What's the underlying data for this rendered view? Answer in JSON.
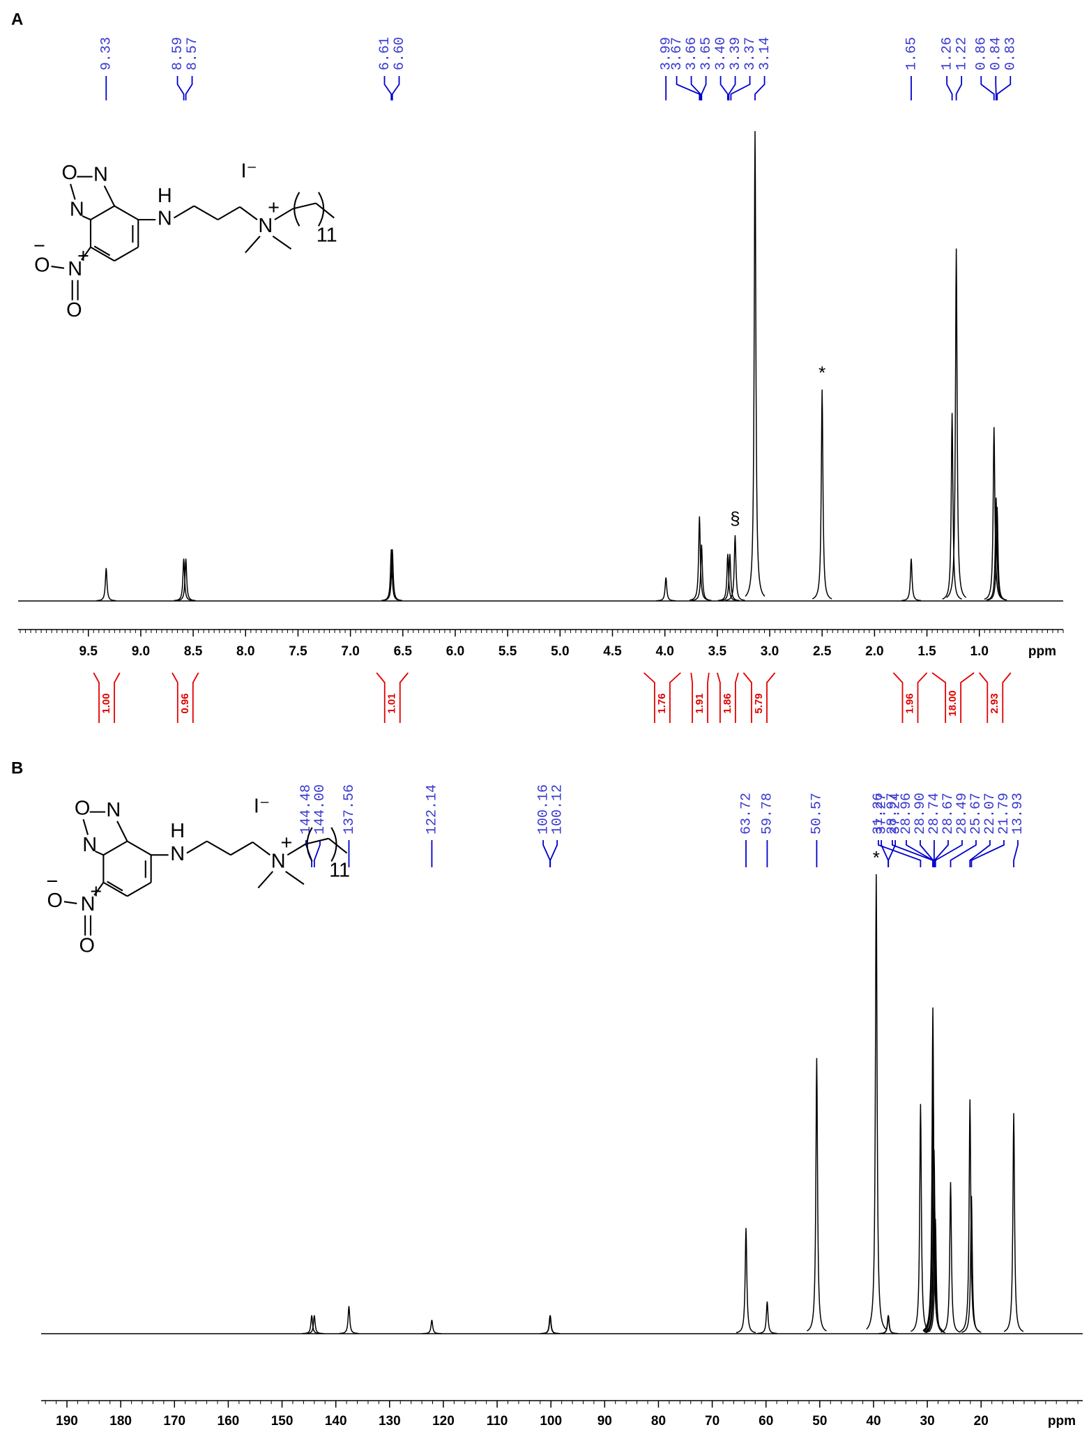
{
  "chart_data": [
    {
      "type": "nmr",
      "panel_label": "A",
      "x_label": "ppm",
      "xlim": [
        10.17,
        0.2
      ],
      "minor_tick_step": 0.05,
      "color": "#000000",
      "label_color": "#3a3ad0",
      "integral_color": "#e00000",
      "xticks": [
        9.5,
        {
          "value": 9,
          "label": "9.0"
        },
        8.5,
        {
          "value": 8,
          "label": "8.0"
        },
        7.5,
        {
          "value": 7,
          "label": "7.0"
        },
        6.5,
        {
          "value": 6,
          "label": "6.0"
        },
        5.5,
        {
          "value": 5,
          "label": "5.0"
        },
        4.5,
        {
          "value": 4,
          "label": "4.0"
        },
        3.5,
        {
          "value": 3,
          "label": "3.0"
        },
        2.5,
        {
          "value": 2,
          "label": "2.0"
        },
        1.5,
        {
          "value": 1,
          "label": "1.0"
        }
      ],
      "peaks": {
        "x": [
          9.33,
          8.59,
          8.57,
          6.61,
          6.6,
          3.99,
          3.67,
          3.65,
          3.4,
          3.38,
          3.33,
          3.14,
          2.5,
          1.65,
          1.26,
          1.22,
          0.86,
          0.84,
          0.83
        ],
        "values": [
          7,
          9,
          9,
          11,
          11,
          5,
          18,
          12,
          10,
          10,
          14,
          100,
          45,
          9,
          40,
          75,
          37,
          22,
          20
        ]
      },
      "shift_labels": [
        "9.33",
        "8.59",
        "8.57",
        "6.61",
        "6.60",
        "3.99",
        "3.67",
        "3.66",
        "3.65",
        "3.40",
        "3.39",
        "3.37",
        "3.14",
        "1.65",
        "1.26",
        "1.22",
        "0.86",
        "0.84",
        "0.83"
      ],
      "shift_values": [
        9.33,
        8.59,
        8.57,
        6.61,
        6.6,
        3.99,
        3.67,
        3.66,
        3.65,
        3.4,
        3.39,
        3.37,
        3.14,
        1.65,
        1.26,
        1.22,
        0.86,
        0.84,
        0.83
      ],
      "integrals": [
        {
          "value": 1,
          "label": "1.00",
          "range": [
            9.45,
            9.2
          ]
        },
        {
          "value": 0.96,
          "label": "0.96",
          "range": [
            8.7,
            8.45
          ]
        },
        {
          "value": 1.01,
          "label": "1.01",
          "range": [
            6.75,
            6.45
          ]
        },
        {
          "value": 1.76,
          "label": "1.76",
          "range": [
            4.2,
            3.85
          ]
        },
        {
          "value": 1.91,
          "label": "1.91",
          "range": [
            3.75,
            3.58
          ]
        },
        {
          "value": 1.86,
          "label": "1.86",
          "range": [
            3.5,
            3.3
          ]
        },
        {
          "value": 5.79,
          "label": "5.79",
          "range": [
            3.25,
            2.95
          ]
        },
        {
          "value": 1.96,
          "label": "1.96",
          "range": [
            1.82,
            1.5
          ]
        },
        {
          "value": 18,
          "label": "18.00",
          "range": [
            1.45,
            1.05
          ]
        },
        {
          "value": 2.93,
          "label": "2.93",
          "range": [
            1.0,
            0.7
          ]
        }
      ],
      "annotations": [
        {
          "text": "*",
          "x": 2.5
        },
        {
          "text": "§",
          "x": 3.33
        }
      ],
      "structure_labels": [
        "O",
        "N",
        "N",
        "N",
        "H",
        "N",
        "+",
        "I⁻",
        "11",
        "N",
        "+",
        "O",
        "−",
        "O"
      ]
    },
    {
      "type": "nmr",
      "panel_label": "B",
      "x_label": "ppm",
      "xlim": [
        194.8,
        1.1
      ],
      "minor_tick_step": 2,
      "color": "#000000",
      "label_color": "#3a3ad0",
      "xticks": [
        190,
        180,
        170,
        160,
        150,
        140,
        130,
        120,
        110,
        100,
        90,
        80,
        70,
        60,
        50,
        40,
        30,
        20
      ],
      "peaks": {
        "x": [
          144.48,
          144.0,
          137.56,
          122.14,
          100.16,
          100.12,
          63.72,
          59.78,
          50.57,
          39.5,
          37.27,
          37.24,
          31.26,
          28.97,
          28.96,
          28.9,
          28.74,
          28.67,
          28.49,
          25.67,
          22.07,
          21.79,
          13.93
        ],
        "values": [
          4,
          4,
          6,
          3,
          4,
          4,
          23,
          7,
          60,
          100,
          4,
          4,
          50,
          71,
          60,
          50,
          40,
          30,
          25,
          33,
          51,
          30,
          48
        ]
      },
      "shift_labels": [
        "144.48",
        "144.00",
        "137.56",
        "122.14",
        "100.16",
        "100.12",
        "63.72",
        "59.78",
        "50.57",
        "37.27",
        "37.24",
        "31.26",
        "28.97",
        "28.96",
        "28.90",
        "28.74",
        "28.67",
        "28.49",
        "25.67",
        "22.07",
        "21.79",
        "13.93"
      ],
      "shift_values": [
        144.48,
        144,
        137.56,
        122.14,
        100.16,
        100.12,
        63.72,
        59.78,
        50.57,
        37.27,
        37.24,
        31.26,
        28.97,
        28.96,
        28.9,
        28.74,
        28.67,
        28.49,
        25.67,
        22.07,
        21.79,
        13.93
      ],
      "annotations": [
        {
          "text": "*",
          "x": 39.5
        }
      ],
      "structure_labels": [
        "O",
        "N",
        "N",
        "N",
        "H",
        "N",
        "+",
        "I⁻",
        "11",
        "N",
        "+",
        "O",
        "−",
        "O"
      ]
    }
  ]
}
